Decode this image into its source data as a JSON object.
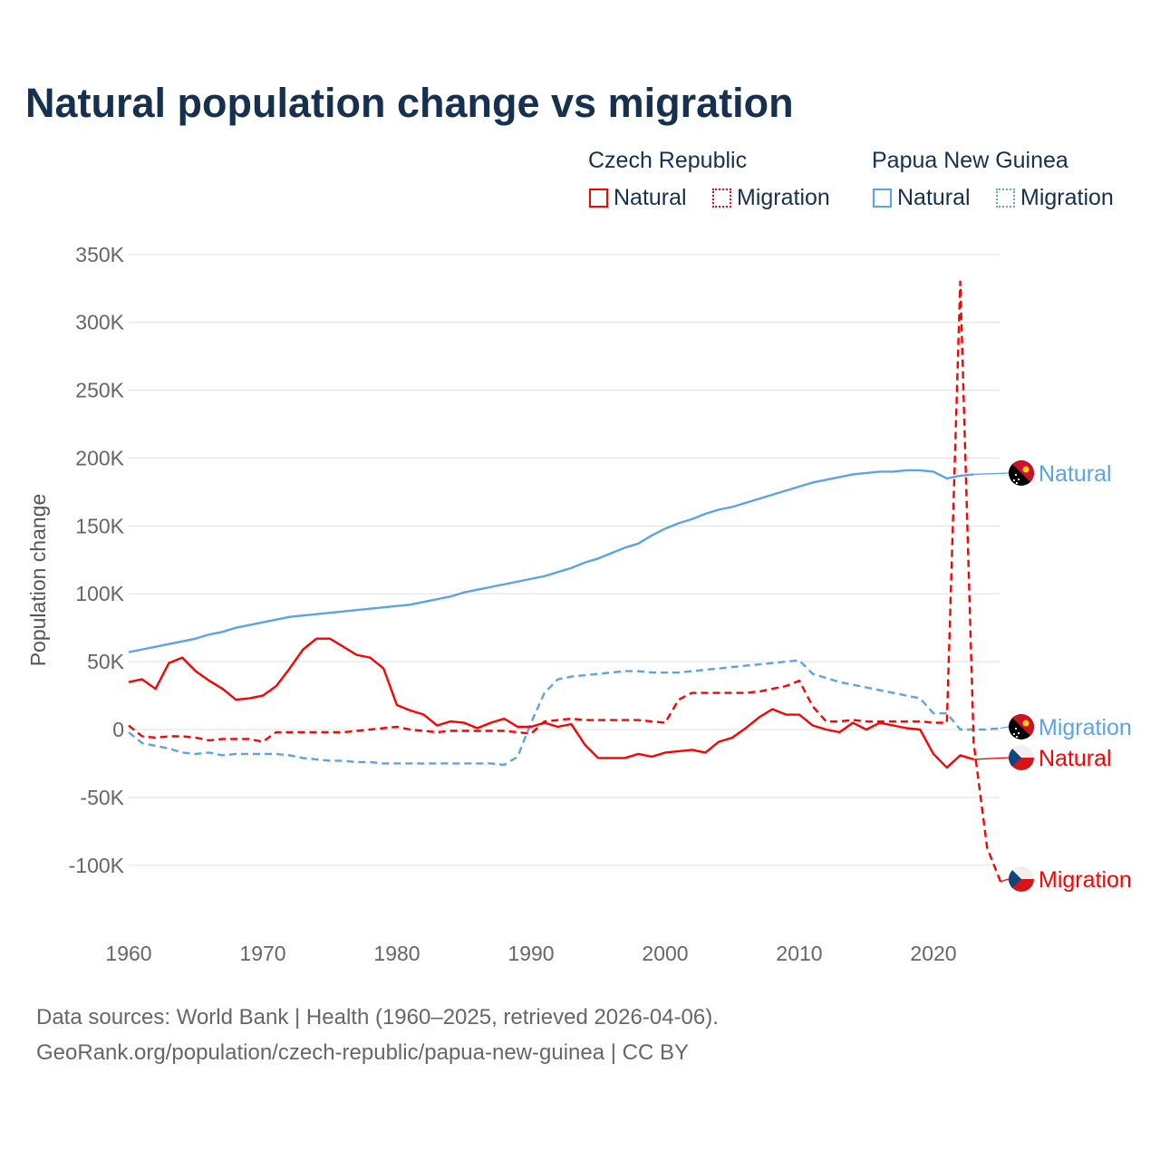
{
  "title": "Natural population change vs migration",
  "legend": {
    "groups": [
      {
        "name": "Czech Republic",
        "items": [
          {
            "label": "Natural",
            "style": "solid"
          },
          {
            "label": "Migration",
            "style": "dotted"
          }
        ],
        "color": "#ff0000"
      },
      {
        "name": "Papua New Guinea",
        "items": [
          {
            "label": "Natural",
            "style": "solid"
          },
          {
            "label": "Migration",
            "style": "dotted"
          }
        ],
        "color": "#5ba3e8"
      }
    ]
  },
  "sources": [
    "Data sources: World Bank | Health (1960–2025, retrieved 2026-04-06).",
    "GeoRank.org/population/czech-republic/papua-new-guinea | CC BY"
  ],
  "chart_data": {
    "type": "line",
    "title": "Natural population change vs migration",
    "xlabel": "",
    "ylabel": "Population change",
    "xlim": [
      1960,
      2025
    ],
    "ylim": [
      -100000,
      350000
    ],
    "yticks": [
      350000,
      300000,
      250000,
      200000,
      150000,
      100000,
      50000,
      0,
      -50000,
      -100000
    ],
    "ytick_labels": [
      "350K",
      "300K",
      "250K",
      "200K",
      "150K",
      "100K",
      "50K",
      "0",
      "-50K",
      "-100K"
    ],
    "xticks": [
      1960,
      1970,
      1980,
      1990,
      2000,
      2010,
      2020
    ],
    "xtick_labels": [
      "1960",
      "1970",
      "1980",
      "1990",
      "2000",
      "2010",
      "2020"
    ],
    "grid": true,
    "legend_placement": "top-right",
    "series": [
      {
        "name": "Papua New Guinea Natural",
        "end_label": "Natural",
        "country": "png",
        "color": "#5ba3e8",
        "dashed": false,
        "start_year": 1960,
        "values_k": [
          57,
          59,
          61,
          63,
          65,
          67,
          70,
          72,
          75,
          77,
          79,
          81,
          83,
          84,
          85,
          86,
          87,
          88,
          89,
          90,
          91,
          92,
          94,
          96,
          98,
          101,
          103,
          105,
          107,
          109,
          111,
          113,
          116,
          119,
          123,
          126,
          130,
          134,
          137,
          143,
          148,
          152,
          155,
          159,
          162,
          164,
          167,
          170,
          173,
          176,
          179,
          182,
          184,
          186,
          188,
          189,
          190,
          190,
          191,
          191,
          190,
          185,
          187,
          188
        ]
      },
      {
        "name": "Papua New Guinea Migration",
        "end_label": "Migration",
        "country": "png",
        "color": "#5ba3e8",
        "dashed": true,
        "start_year": 1960,
        "values_k": [
          -2,
          -10,
          -12,
          -14,
          -17,
          -18,
          -17,
          -19,
          -18,
          -18,
          -18,
          -18,
          -19,
          -21,
          -22,
          -23,
          -23,
          -24,
          -24,
          -25,
          -25,
          -25,
          -25,
          -25,
          -25,
          -25,
          -25,
          -25,
          -26,
          -20,
          5,
          27,
          37,
          39,
          40,
          41,
          42,
          43,
          43,
          42,
          42,
          42,
          43,
          44,
          45,
          46,
          47,
          48,
          49,
          50,
          51,
          41,
          38,
          35,
          33,
          31,
          29,
          27,
          25,
          23,
          12,
          12,
          0,
          0,
          0,
          1
        ]
      },
      {
        "name": "Czech Republic Natural",
        "end_label": "Natural",
        "country": "cz",
        "color": "#ff0000",
        "dashed": false,
        "start_year": 1960,
        "values_k": [
          35,
          37,
          30,
          49,
          53,
          43,
          36,
          30,
          22,
          23,
          25,
          32,
          45,
          59,
          67,
          67,
          61,
          55,
          53,
          45,
          18,
          14,
          11,
          3,
          6,
          5,
          1,
          5,
          8,
          2,
          2,
          5,
          2,
          4,
          -11,
          -21,
          -21,
          -21,
          -18,
          -20,
          -17,
          -16,
          -15,
          -17,
          -9,
          -6,
          1,
          9,
          15,
          11,
          11,
          3,
          0,
          -2,
          5,
          0,
          5,
          3,
          1,
          0,
          -18,
          -28,
          -19,
          -22
        ]
      },
      {
        "name": "Czech Republic Migration",
        "end_label": "Migration",
        "country": "cz",
        "color": "#ff0000",
        "dashed": true,
        "start_year": 1960,
        "values_k": [
          3,
          -5,
          -6,
          -5,
          -5,
          -6,
          -8,
          -7,
          -7,
          -7,
          -9,
          -2,
          -2,
          -2,
          -2,
          -2,
          -2,
          -1,
          0,
          1,
          2,
          0,
          -1,
          -2,
          -1,
          -1,
          -1,
          -1,
          -1,
          -2,
          -3,
          6,
          7,
          8,
          7,
          7,
          7,
          7,
          7,
          6,
          5,
          22,
          27,
          27,
          27,
          27,
          27,
          28,
          30,
          32,
          36,
          17,
          6,
          6,
          7,
          6,
          6,
          6,
          6,
          6,
          5,
          5,
          330,
          -10,
          -87,
          -112
        ]
      }
    ]
  }
}
